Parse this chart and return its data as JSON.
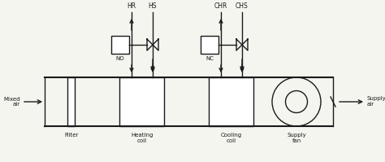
{
  "bg_color": "#f5f5f0",
  "line_color": "#1a1a1a",
  "labels": {
    "mixed_air": "Mixed\nair",
    "supply_air": "Supply\nair",
    "filter": "Filter",
    "heating_coil": "Heating\ncoil",
    "cooling_coil": "Cooling\ncoil",
    "supply_fan": "Supply\nfan",
    "HR": "HR",
    "HS": "HS",
    "CHR": "CHR",
    "CHS": "CHS",
    "NO": "NO",
    "NC": "NC"
  }
}
